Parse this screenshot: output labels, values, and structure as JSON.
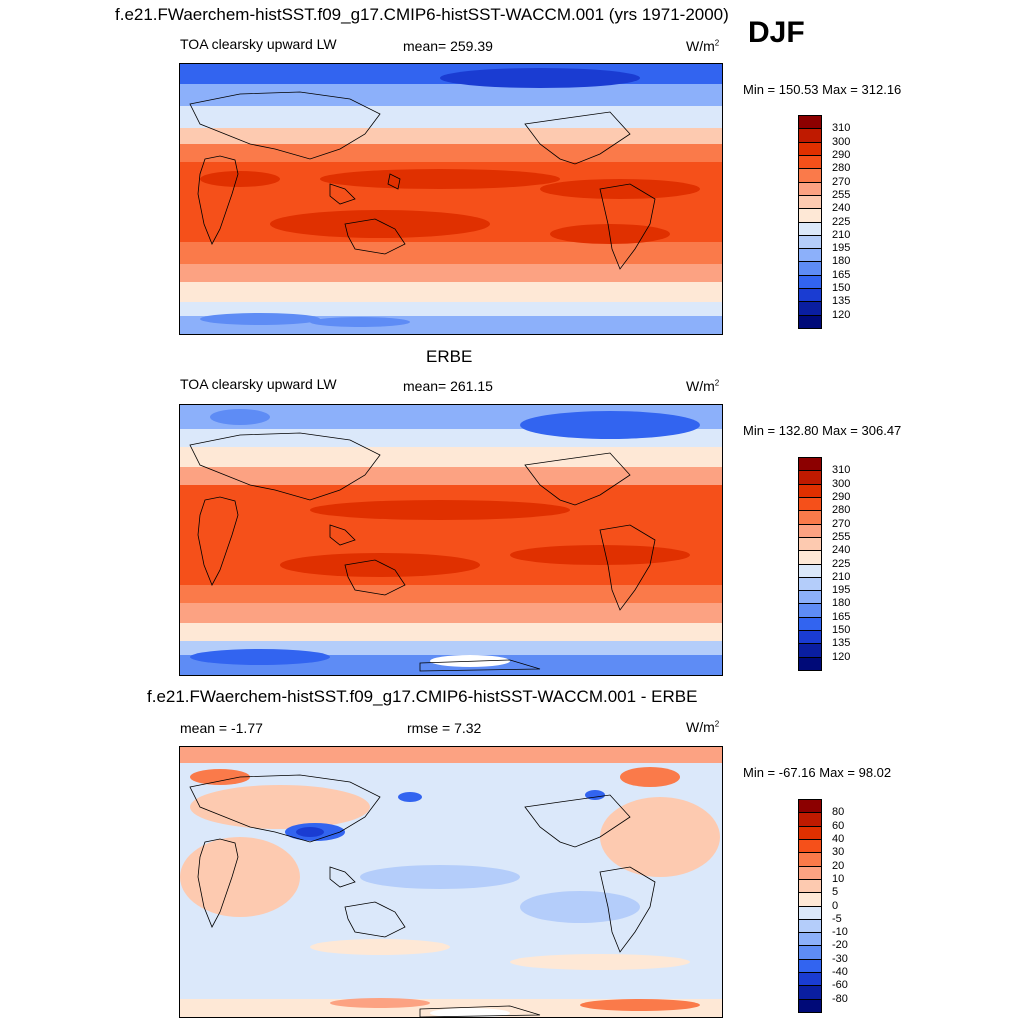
{
  "figure": {
    "season": "DJF",
    "title_model": "f.e21.FWaerchem-histSST.f09_g17.CMIP6-histSST-WACCM.001 (yrs 1971-2000)",
    "title_obs": "ERBE",
    "title_diff": "f.e21.FWaerchem-histSST.f09_g17.CMIP6-histSST-WACCM.001 - ERBE"
  },
  "panels": [
    {
      "variable": "TOA clearsky upward LW",
      "stat1": "mean= 259.39",
      "stat2": "",
      "units": "W/m",
      "units_sup": "2",
      "minmax": "Min = 150.53 Max = 312.16"
    },
    {
      "variable": "TOA clearsky upward LW",
      "stat1": "mean= 261.15",
      "stat2": "",
      "units": "W/m",
      "units_sup": "2",
      "minmax": "Min = 132.80 Max = 306.47"
    },
    {
      "variable": "",
      "stat1": "mean =  -1.77",
      "stat2": "rmse =   7.32",
      "units": "W/m",
      "units_sup": "2",
      "minmax": "Min = -67.16 Max =  98.02"
    }
  ],
  "colorbars": {
    "absolute": {
      "labels": [
        "310",
        "300",
        "290",
        "280",
        "270",
        "255",
        "240",
        "225",
        "210",
        "195",
        "180",
        "165",
        "150",
        "135",
        "120"
      ],
      "colors": [
        "#8c0000",
        "#bf1a00",
        "#e03000",
        "#f5501a",
        "#fa7a4a",
        "#fca282",
        "#fdcab0",
        "#fee8d6",
        "#dbe8fa",
        "#b4cdfa",
        "#8cb0fa",
        "#5e8cf5",
        "#3264f0",
        "#1a3cd2",
        "#0a1ea0",
        "#000a78"
      ]
    },
    "difference": {
      "labels": [
        "80",
        "60",
        "40",
        "30",
        "20",
        "10",
        "5",
        "0",
        "-5",
        "-10",
        "-20",
        "-30",
        "-40",
        "-60",
        "-80"
      ],
      "colors": [
        "#8c0000",
        "#bf1a00",
        "#e03000",
        "#f5501a",
        "#fa7a4a",
        "#fca282",
        "#fdcab0",
        "#fee8d6",
        "#dbe8fa",
        "#b4cdfa",
        "#8cb0fa",
        "#5e8cf5",
        "#3264f0",
        "#1a3cd2",
        "#0a1ea0",
        "#000a78"
      ]
    }
  }
}
